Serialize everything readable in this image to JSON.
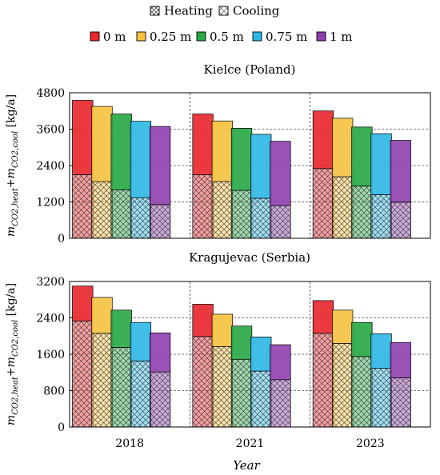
{
  "legend": {
    "components": [
      {
        "key": "heating",
        "label": "Heating"
      },
      {
        "key": "cooling",
        "label": "Cooling"
      }
    ],
    "depths": [
      {
        "label": "0 m",
        "color": "#e8252a"
      },
      {
        "label": "0.25 m",
        "color": "#f6c23e"
      },
      {
        "label": "0.5 m",
        "color": "#27a745"
      },
      {
        "label": "0.75 m",
        "color": "#2bb7e6"
      },
      {
        "label": "1 m",
        "color": "#8e3fae"
      }
    ]
  },
  "xlabel": "Year",
  "ylabel": {
    "main": "m",
    "sub1": "CO2,heat",
    "plus": "+m",
    "sub2": "CO2,cool",
    "unit": " [kg/a]"
  },
  "chart_data": [
    {
      "type": "bar",
      "stacked": true,
      "title": "Kielce (Poland)",
      "categories": [
        "2018",
        "2021",
        "2023"
      ],
      "ylim": [
        0,
        4800
      ],
      "yticks": [
        0,
        1200,
        2400,
        3600,
        4800
      ],
      "grid": "dashed",
      "series": [
        {
          "name": "0 m",
          "cooling": [
            2100,
            2100,
            2300
          ],
          "heating": [
            2450,
            2000,
            1900
          ]
        },
        {
          "name": "0.25 m",
          "cooling": [
            1870,
            1870,
            2030
          ],
          "heating": [
            2480,
            2000,
            1930
          ]
        },
        {
          "name": "0.5 m",
          "cooling": [
            1600,
            1580,
            1720
          ],
          "heating": [
            2500,
            2050,
            1950
          ]
        },
        {
          "name": "0.75 m",
          "cooling": [
            1340,
            1320,
            1440
          ],
          "heating": [
            2520,
            2110,
            2010
          ]
        },
        {
          "name": "1 m",
          "cooling": [
            1110,
            1080,
            1190
          ],
          "heating": [
            2580,
            2120,
            2040
          ]
        }
      ]
    },
    {
      "type": "bar",
      "stacked": true,
      "title": "Kragujevac (Serbia)",
      "categories": [
        "2018",
        "2021",
        "2023"
      ],
      "ylim": [
        0,
        3200
      ],
      "yticks": [
        0,
        800,
        1600,
        2400,
        3200
      ],
      "grid": "dashed",
      "series": [
        {
          "name": "0 m",
          "cooling": [
            2330,
            1990,
            2060
          ],
          "heating": [
            770,
            710,
            720
          ]
        },
        {
          "name": "0.25 m",
          "cooling": [
            2060,
            1770,
            1840
          ],
          "heating": [
            790,
            710,
            730
          ]
        },
        {
          "name": "0.5 m",
          "cooling": [
            1750,
            1490,
            1550
          ],
          "heating": [
            820,
            730,
            750
          ]
        },
        {
          "name": "0.75 m",
          "cooling": [
            1450,
            1230,
            1290
          ],
          "heating": [
            850,
            750,
            760
          ]
        },
        {
          "name": "1 m",
          "cooling": [
            1210,
            1040,
            1080
          ],
          "heating": [
            860,
            770,
            780
          ]
        }
      ]
    }
  ]
}
